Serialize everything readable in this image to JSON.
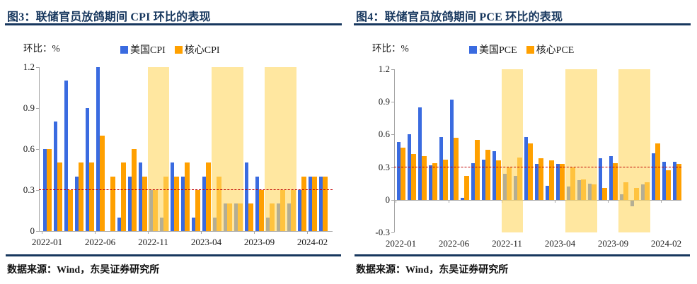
{
  "colors": {
    "series_headline": "#3a6be0",
    "series_core": "#ffa000",
    "band": "#ffd966",
    "reference_line": "#c00000",
    "title": "#17375e",
    "axis": "#a6a6a6"
  },
  "panels": [
    {
      "source_note": "数据来源：Wind，东吴证券研究所"
    },
    {
      "source_note": "数据来源：Wind，东吴证券研究所"
    }
  ],
  "chart_data": [
    {
      "type": "bar",
      "title": "图3：联储官员放鸽期间 CPI 环比的表现",
      "ylabel": "环比：%",
      "categories": [
        "2022-01",
        "2022-02",
        "2022-03",
        "2022-04",
        "2022-05",
        "2022-06",
        "2022-07",
        "2022-08",
        "2022-09",
        "2022-10",
        "2022-11",
        "2022-12",
        "2023-01",
        "2023-02",
        "2023-03",
        "2023-04",
        "2023-05",
        "2023-06",
        "2023-07",
        "2023-08",
        "2023-09",
        "2023-10",
        "2023-11",
        "2023-12",
        "2024-01",
        "2024-02",
        "2024-03"
      ],
      "series": [
        {
          "name": "美国CPI",
          "values": [
            0.6,
            0.8,
            1.1,
            0.4,
            0.9,
            1.2,
            0.0,
            0.1,
            0.4,
            0.5,
            0.3,
            0.1,
            0.5,
            0.4,
            0.1,
            0.4,
            0.1,
            0.2,
            0.2,
            0.5,
            0.4,
            0.1,
            0.2,
            0.2,
            0.3,
            0.4,
            0.4
          ]
        },
        {
          "name": "核心CPI",
          "values": [
            0.6,
            0.5,
            0.3,
            0.5,
            0.5,
            0.7,
            0.4,
            0.5,
            0.6,
            0.4,
            0.3,
            0.4,
            0.4,
            0.5,
            0.3,
            0.5,
            0.4,
            0.2,
            0.2,
            0.2,
            0.3,
            0.2,
            0.3,
            0.3,
            0.4,
            0.4,
            0.4
          ]
        }
      ],
      "ylim": [
        0,
        1.2
      ],
      "yticks": [
        "1.2",
        "0.9",
        "0.6",
        "0.3",
        "0"
      ],
      "xticks": [
        "2022-01",
        "2022-06",
        "2022-11",
        "2023-04",
        "2023-09",
        "2024-02"
      ],
      "reference_line": 0.3,
      "highlight_bands": [
        [
          "2022-11",
          "2022-12"
        ],
        [
          "2023-05",
          "2023-07"
        ],
        [
          "2023-10",
          "2023-12"
        ]
      ],
      "grid": false,
      "legend_position": "top"
    },
    {
      "type": "bar",
      "title": "图4：联储官员放鸽期间 PCE 环比的表现",
      "ylabel": "环比：%",
      "categories": [
        "2022-01",
        "2022-02",
        "2022-03",
        "2022-04",
        "2022-05",
        "2022-06",
        "2022-07",
        "2022-08",
        "2022-09",
        "2022-10",
        "2022-11",
        "2022-12",
        "2023-01",
        "2023-02",
        "2023-03",
        "2023-04",
        "2023-05",
        "2023-06",
        "2023-07",
        "2023-08",
        "2023-09",
        "2023-10",
        "2023-11",
        "2023-12",
        "2024-01",
        "2024-02",
        "2024-03"
      ],
      "series": [
        {
          "name": "美国PCE",
          "values": [
            0.53,
            0.6,
            0.85,
            0.32,
            0.58,
            0.92,
            0.02,
            0.34,
            0.37,
            0.45,
            0.24,
            0.22,
            0.58,
            0.33,
            0.13,
            0.33,
            0.12,
            0.18,
            0.15,
            0.38,
            0.4,
            0.05,
            -0.05,
            0.14,
            0.43,
            0.35,
            0.35
          ]
        },
        {
          "name": "核心PCE",
          "values": [
            0.48,
            0.42,
            0.4,
            0.34,
            0.37,
            0.57,
            0.22,
            0.55,
            0.46,
            0.36,
            0.3,
            0.39,
            0.52,
            0.38,
            0.36,
            0.33,
            0.3,
            0.19,
            0.14,
            0.11,
            0.34,
            0.16,
            0.11,
            0.16,
            0.52,
            0.27,
            0.33
          ]
        }
      ],
      "ylim": [
        -0.3,
        1.2
      ],
      "yticks": [
        "1.2",
        "0.9",
        "0.6",
        "0.3",
        "0",
        "-0.3"
      ],
      "xticks": [
        "2022-01",
        "2022-06",
        "2022-11",
        "2023-04",
        "2023-09",
        "2024-02"
      ],
      "reference_line": 0.3,
      "highlight_bands": [
        [
          "2022-11",
          "2022-12"
        ],
        [
          "2023-05",
          "2023-07"
        ],
        [
          "2023-10",
          "2023-12"
        ]
      ],
      "grid": false,
      "legend_position": "top"
    }
  ]
}
